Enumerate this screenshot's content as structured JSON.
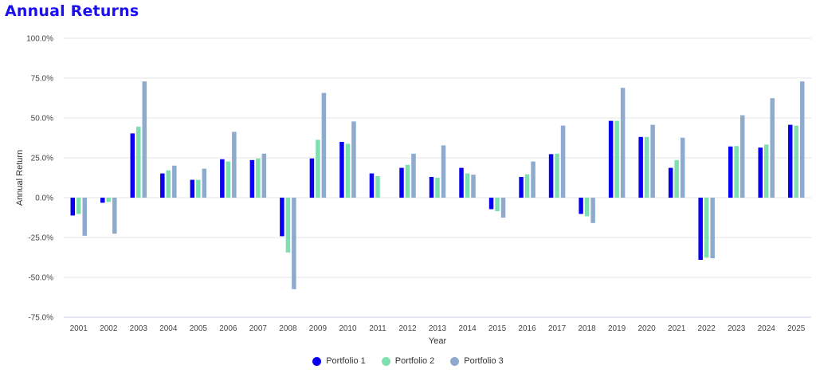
{
  "chart_data": {
    "type": "bar",
    "title": "Annual Returns",
    "xlabel": "Year",
    "ylabel": "Annual Return",
    "ylim": [
      -75,
      100
    ],
    "yticks": [
      "100.0%",
      "75.0%",
      "50.0%",
      "25.0%",
      "0.0%",
      "-25.0%",
      "-50.0%",
      "-75.0%"
    ],
    "ytick_values": [
      100,
      75,
      50,
      25,
      0,
      -25,
      -50,
      -75
    ],
    "grid": true,
    "legend": "bottom",
    "categories": [
      "2001",
      "2002",
      "2003",
      "2004",
      "2005",
      "2006",
      "2007",
      "2008",
      "2009",
      "2010",
      "2011",
      "2012",
      "2013",
      "2014",
      "2015",
      "2016",
      "2017",
      "2018",
      "2019",
      "2020",
      "2021",
      "2022",
      "2023",
      "2024",
      "2025"
    ],
    "series": [
      {
        "name": "Portfolio 1",
        "color": "#0a00f0",
        "values": [
          -11.2,
          -3.2,
          40.3,
          15.2,
          11.2,
          24.1,
          23.6,
          -24.2,
          24.6,
          35.0,
          15.2,
          18.7,
          13.0,
          18.7,
          -7.2,
          13.0,
          27.3,
          -10.2,
          48.2,
          38.1,
          18.7,
          -39.0,
          32.1,
          31.4,
          45.7
        ]
      },
      {
        "name": "Portfolio 2",
        "color": "#7ee0b0",
        "values": [
          -10.2,
          -2.7,
          44.6,
          17.1,
          11.2,
          22.7,
          24.6,
          -34.4,
          36.3,
          33.8,
          13.5,
          20.6,
          12.5,
          15.2,
          -8.5,
          14.7,
          27.6,
          -11.7,
          48.2,
          38.1,
          23.6,
          -37.6,
          32.4,
          33.3,
          45.2
        ]
      },
      {
        "name": "Portfolio 3",
        "color": "#8eaacd",
        "values": [
          -23.9,
          -22.6,
          72.9,
          20.1,
          18.2,
          41.3,
          27.6,
          -57.4,
          65.7,
          47.8,
          0,
          27.6,
          32.8,
          14.4,
          -12.5,
          22.7,
          45.2,
          -15.9,
          68.9,
          45.7,
          37.6,
          -38.0,
          51.7,
          62.4,
          72.9
        ]
      }
    ]
  }
}
